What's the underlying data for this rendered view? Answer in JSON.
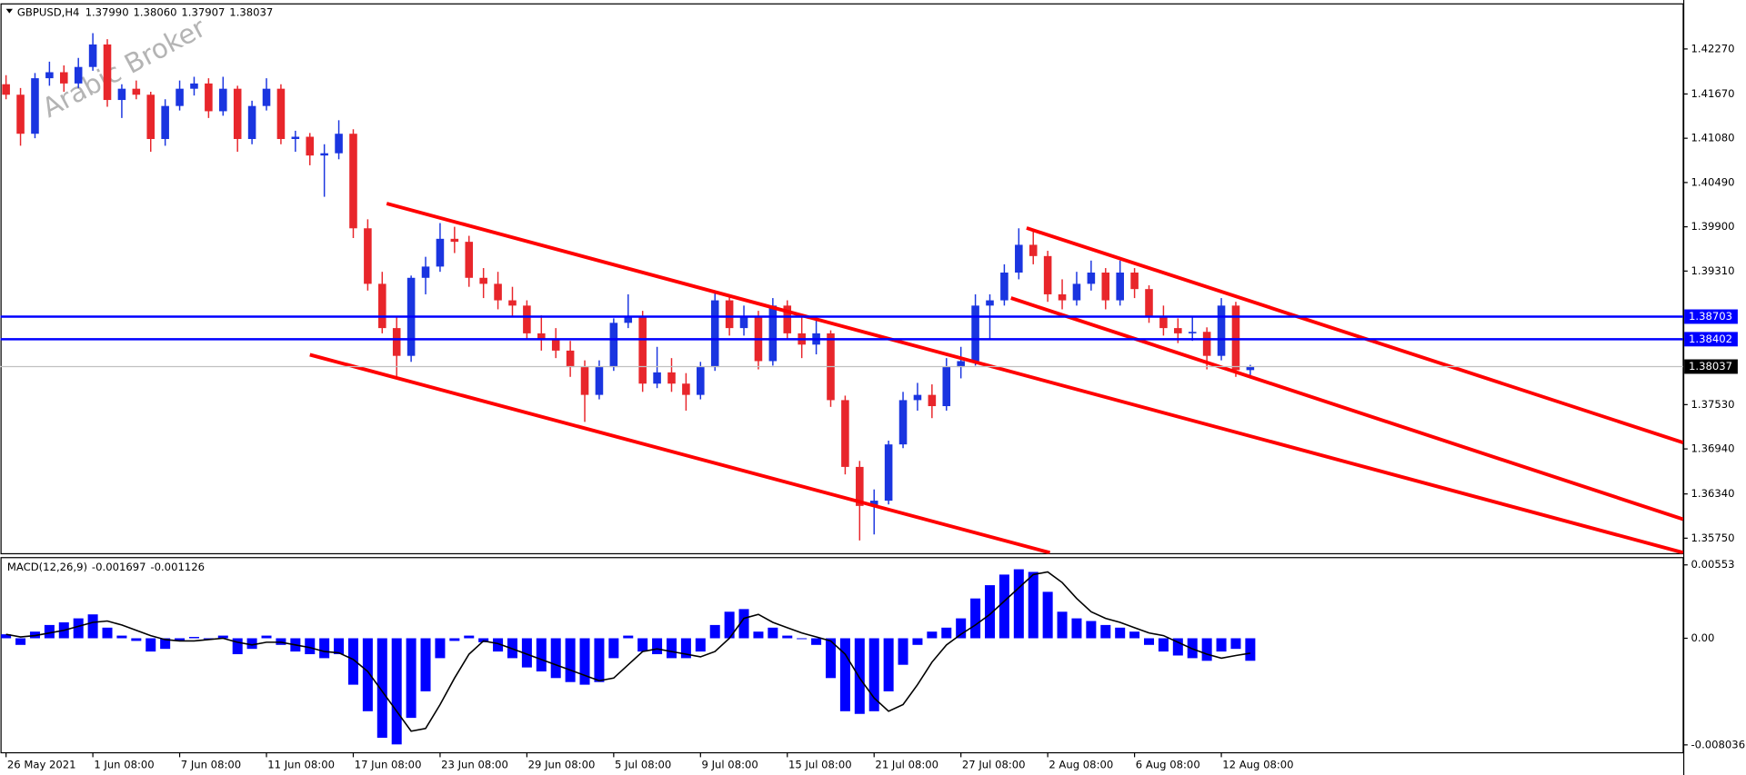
{
  "chart_data": [
    {
      "type": "candlestick",
      "symbol": "GBPUSD,H4",
      "last_labels": [
        "1.37990",
        "1.38060",
        "1.37907",
        "1.38037"
      ],
      "watermark": "Arabic Broker",
      "up_color": "#1a35e0",
      "down_color": "#e8262b",
      "categories": [
        "26 May 2021",
        null,
        null,
        null,
        null,
        null,
        "1 Jun 08:00",
        null,
        null,
        null,
        null,
        null,
        "7 Jun 08:00",
        null,
        null,
        null,
        null,
        null,
        "11 Jun 08:00",
        null,
        null,
        null,
        null,
        null,
        "17 Jun 08:00",
        null,
        null,
        null,
        null,
        null,
        "23 Jun 08:00",
        null,
        null,
        null,
        null,
        null,
        "29 Jun 08:00",
        null,
        null,
        null,
        null,
        null,
        "5 Jul 08:00",
        null,
        null,
        null,
        null,
        null,
        "9 Jul 08:00",
        null,
        null,
        null,
        null,
        null,
        "15 Jul 08:00",
        null,
        null,
        null,
        null,
        null,
        "21 Jul 08:00",
        null,
        null,
        null,
        null,
        null,
        "27 Jul 08:00",
        null,
        null,
        null,
        null,
        null,
        "2 Aug 08:00",
        null,
        null,
        null,
        null,
        null,
        "6 Aug 08:00",
        null,
        null,
        null,
        null,
        null,
        "12 Aug 08:00",
        null,
        null
      ],
      "candles": [
        [
          1.418,
          1.4192,
          1.416,
          1.4166
        ],
        [
          1.4166,
          1.4175,
          1.4098,
          1.4114
        ],
        [
          1.4114,
          1.4195,
          1.4108,
          1.4188
        ],
        [
          1.4188,
          1.421,
          1.4178,
          1.4196
        ],
        [
          1.4196,
          1.4205,
          1.417,
          1.4181
        ],
        [
          1.4181,
          1.4215,
          1.4175,
          1.4203
        ],
        [
          1.4203,
          1.4248,
          1.4198,
          1.4233
        ],
        [
          1.4233,
          1.424,
          1.415,
          1.4159
        ],
        [
          1.4159,
          1.418,
          1.4135,
          1.4174
        ],
        [
          1.4174,
          1.4185,
          1.416,
          1.4166
        ],
        [
          1.4166,
          1.417,
          1.409,
          1.4107
        ],
        [
          1.4107,
          1.416,
          1.4098,
          1.4151
        ],
        [
          1.4151,
          1.4185,
          1.4145,
          1.4174
        ],
        [
          1.4174,
          1.419,
          1.4165,
          1.4181
        ],
        [
          1.4181,
          1.4188,
          1.4135,
          1.4144
        ],
        [
          1.4144,
          1.419,
          1.4138,
          1.4174
        ],
        [
          1.4174,
          1.4178,
          1.409,
          1.4107
        ],
        [
          1.4107,
          1.4158,
          1.41,
          1.4151
        ],
        [
          1.4151,
          1.4188,
          1.4145,
          1.4174
        ],
        [
          1.4174,
          1.418,
          1.41,
          1.4107
        ],
        [
          1.4107,
          1.4118,
          1.409,
          1.411
        ],
        [
          1.411,
          1.4115,
          1.4072,
          1.4085
        ],
        [
          1.4085,
          1.41,
          1.403,
          1.4088
        ],
        [
          1.4088,
          1.4132,
          1.408,
          1.4114
        ],
        [
          1.4114,
          1.412,
          1.3975,
          1.3988
        ],
        [
          1.3988,
          1.4,
          1.3905,
          1.3914
        ],
        [
          1.3914,
          1.393,
          1.3848,
          1.3855
        ],
        [
          1.3855,
          1.387,
          1.3787,
          1.3818
        ],
        [
          1.3818,
          1.3925,
          1.381,
          1.3922
        ],
        [
          1.3922,
          1.395,
          1.39,
          1.3937
        ],
        [
          1.3937,
          1.3995,
          1.393,
          1.3974
        ],
        [
          1.3974,
          1.399,
          1.3955,
          1.397
        ],
        [
          1.397,
          1.3978,
          1.391,
          1.3922
        ],
        [
          1.3922,
          1.3935,
          1.3895,
          1.3914
        ],
        [
          1.3914,
          1.393,
          1.388,
          1.3892
        ],
        [
          1.3892,
          1.391,
          1.387,
          1.3885
        ],
        [
          1.3885,
          1.3892,
          1.384,
          1.3848
        ],
        [
          1.3848,
          1.3872,
          1.3825,
          1.384
        ],
        [
          1.384,
          1.3855,
          1.3815,
          1.3825
        ],
        [
          1.3825,
          1.3838,
          1.379,
          1.3803
        ],
        [
          1.3803,
          1.3812,
          1.373,
          1.3766
        ],
        [
          1.3766,
          1.3812,
          1.376,
          1.3803
        ],
        [
          1.3803,
          1.3868,
          1.3798,
          1.3862
        ],
        [
          1.3862,
          1.39,
          1.3855,
          1.387
        ],
        [
          1.387,
          1.3878,
          1.377,
          1.3781
        ],
        [
          1.3781,
          1.383,
          1.3775,
          1.3796
        ],
        [
          1.3796,
          1.3815,
          1.377,
          1.3781
        ],
        [
          1.3781,
          1.3795,
          1.3745,
          1.3766
        ],
        [
          1.3766,
          1.381,
          1.376,
          1.3803
        ],
        [
          1.3803,
          1.3905,
          1.3798,
          1.3892
        ],
        [
          1.3892,
          1.39,
          1.3845,
          1.3855
        ],
        [
          1.3855,
          1.3885,
          1.3845,
          1.387
        ],
        [
          1.387,
          1.3878,
          1.38,
          1.3811
        ],
        [
          1.3811,
          1.3895,
          1.3805,
          1.3885
        ],
        [
          1.3885,
          1.3892,
          1.384,
          1.3848
        ],
        [
          1.3848,
          1.387,
          1.3815,
          1.3833
        ],
        [
          1.3833,
          1.3865,
          1.382,
          1.3848
        ],
        [
          1.3848,
          1.3852,
          1.375,
          1.3759
        ],
        [
          1.3759,
          1.3765,
          1.366,
          1.367
        ],
        [
          1.367,
          1.3678,
          1.3572,
          1.3618
        ],
        [
          1.3618,
          1.364,
          1.358,
          1.3625
        ],
        [
          1.3625,
          1.3705,
          1.362,
          1.37
        ],
        [
          1.37,
          1.377,
          1.3695,
          1.3759
        ],
        [
          1.3759,
          1.3782,
          1.3745,
          1.3766
        ],
        [
          1.3766,
          1.378,
          1.3735,
          1.3751
        ],
        [
          1.3751,
          1.3815,
          1.3745,
          1.3803
        ],
        [
          1.3803,
          1.383,
          1.3788,
          1.3811
        ],
        [
          1.3811,
          1.39,
          1.3805,
          1.3885
        ],
        [
          1.3885,
          1.39,
          1.384,
          1.3892
        ],
        [
          1.3892,
          1.394,
          1.3885,
          1.3929
        ],
        [
          1.3929,
          1.3988,
          1.392,
          1.3966
        ],
        [
          1.3966,
          1.3985,
          1.394,
          1.3951
        ],
        [
          1.3951,
          1.3958,
          1.389,
          1.39
        ],
        [
          1.39,
          1.392,
          1.388,
          1.3892
        ],
        [
          1.3892,
          1.393,
          1.3885,
          1.3914
        ],
        [
          1.3914,
          1.3945,
          1.3905,
          1.3929
        ],
        [
          1.3929,
          1.3935,
          1.388,
          1.3892
        ],
        [
          1.3892,
          1.3945,
          1.3885,
          1.3929
        ],
        [
          1.3929,
          1.3935,
          1.3895,
          1.3907
        ],
        [
          1.3907,
          1.3912,
          1.3862,
          1.387
        ],
        [
          1.387,
          1.3885,
          1.3845,
          1.3855
        ],
        [
          1.3855,
          1.3868,
          1.3835,
          1.3848
        ],
        [
          1.3848,
          1.387,
          1.3838,
          1.385
        ],
        [
          1.385,
          1.3856,
          1.38,
          1.3818
        ],
        [
          1.3818,
          1.3895,
          1.3812,
          1.3885
        ],
        [
          1.3885,
          1.389,
          1.379,
          1.3799
        ],
        [
          1.3799,
          1.3806,
          1.37907,
          1.38037
        ]
      ],
      "ylim": [
        1.35543,
        1.42878
      ],
      "yticks": [
        {
          "value": 1.4227,
          "label": "1.42270"
        },
        {
          "value": 1.4167,
          "label": "1.41670"
        },
        {
          "value": 1.4108,
          "label": "1.41080"
        },
        {
          "value": 1.4049,
          "label": "1.40490"
        },
        {
          "value": 1.399,
          "label": "1.39900"
        },
        {
          "value": 1.3931,
          "label": "1.39310"
        },
        {
          "value": 1.3753,
          "label": "1.37530"
        },
        {
          "value": 1.3694,
          "label": "1.36940"
        },
        {
          "value": 1.3634,
          "label": "1.36340"
        },
        {
          "value": 1.3575,
          "label": "1.35750"
        }
      ],
      "levels": [
        1.38703,
        1.38402
      ],
      "level_color": "#0000ff",
      "trendlines": [
        [
          [
            26.31,
            1.4021
          ],
          [
            115.92,
            1.35557
          ]
        ],
        [
          [
            21.0,
            1.38195
          ],
          [
            72.15,
            1.35557
          ]
        ],
        [
          [
            70.54,
            1.39884
          ],
          [
            115.92,
            1.37024
          ]
        ],
        [
          [
            69.46,
            1.38951
          ],
          [
            115.92,
            1.36002
          ]
        ]
      ],
      "trendline_color": "#ff0000"
    },
    {
      "type": "macd",
      "title": "MACD(12,26,9)",
      "color": "#0000ff",
      "signal_color": "#000000",
      "values": [
        0.0003,
        -0.0005,
        0.0005,
        0.001,
        0.0012,
        0.0015,
        0.0018,
        0.0008,
        0.0002,
        -0.0002,
        -0.001,
        -0.0008,
        -0.0002,
        0.0001,
        0,
        0.0002,
        -0.0012,
        -0.0008,
        0.0002,
        -0.0005,
        -0.001,
        -0.0012,
        -0.0015,
        -0.0012,
        -0.0035,
        -0.0055,
        -0.0075,
        -0.008,
        -0.006,
        -0.004,
        -0.0015,
        -0.0002,
        0.0002,
        -0.0003,
        -0.001,
        -0.0015,
        -0.0022,
        -0.0025,
        -0.003,
        -0.0033,
        -0.0035,
        -0.0033,
        -0.0015,
        0.0002,
        -0.001,
        -0.0012,
        -0.0015,
        -0.0015,
        -0.001,
        0.001,
        0.002,
        0.0022,
        0.0005,
        0.0008,
        0.0002,
        0,
        -0.0005,
        -0.003,
        -0.0055,
        -0.0057,
        -0.0055,
        -0.004,
        -0.002,
        -0.0005,
        0.0005,
        0.0008,
        0.0015,
        0.003,
        0.004,
        0.0048,
        0.0052,
        0.005,
        0.0035,
        0.002,
        0.0015,
        0.0013,
        0.001,
        0.0008,
        0.0005,
        -0.0005,
        -0.001,
        -0.0013,
        -0.0015,
        -0.0017,
        -0.001,
        -0.0008,
        -0.001697
      ],
      "signal": [
        0.0003,
        0.0001,
        0.0002,
        0.0004,
        0.0006,
        0.0009,
        0.0012,
        0.0013,
        0.001,
        0.0006,
        0.0002,
        -0.0001,
        -0.0002,
        -0.0002,
        -0.0001,
        0,
        -0.0003,
        -0.0005,
        -0.0003,
        -0.0003,
        -0.0005,
        -0.0007,
        -0.001,
        -0.0011,
        -0.0016,
        -0.0025,
        -0.004,
        -0.0055,
        -0.007,
        -0.0068,
        -0.005,
        -0.003,
        -0.0012,
        -0.0002,
        -0.0004,
        -0.0008,
        -0.0012,
        -0.0016,
        -0.002,
        -0.0024,
        -0.0028,
        -0.0032,
        -0.003,
        -0.002,
        -0.001,
        -0.0008,
        -0.001,
        -0.0012,
        -0.0014,
        -0.001,
        0,
        0.0015,
        0.0018,
        0.0012,
        0.0008,
        0.0004,
        0.0001,
        -0.0002,
        -0.0012,
        -0.003,
        -0.0045,
        -0.0055,
        -0.005,
        -0.0035,
        -0.0018,
        -0.0005,
        0.0003,
        0.001,
        0.0018,
        0.0028,
        0.0038,
        0.0048,
        0.005,
        0.0042,
        0.003,
        0.002,
        0.0015,
        0.0012,
        0.0008,
        0.0004,
        0.0002,
        -0.0003,
        -0.0008,
        -0.0012,
        -0.0015,
        -0.0013,
        -0.001126
      ],
      "ylim": [
        -0.00863,
        0.00612
      ],
      "yticks": [
        0.00553,
        {
          "value": 0,
          "label": "0.00"
        },
        -0.008036
      ]
    }
  ]
}
